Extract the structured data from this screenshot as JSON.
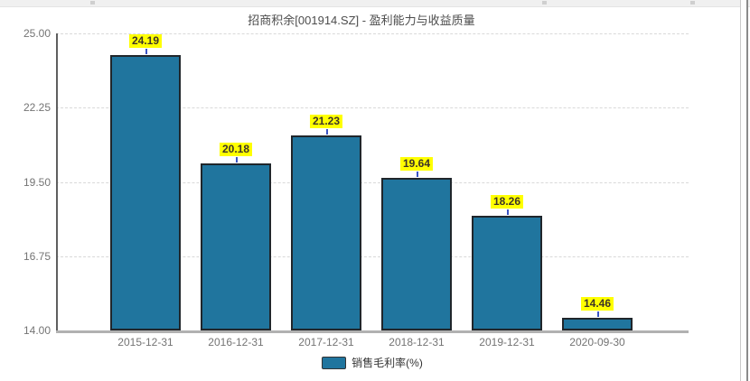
{
  "window": {
    "top_strip": true,
    "scrollbar": true
  },
  "header": {
    "title": "招商积余[001914.SZ] - 盈利能力与收益质量"
  },
  "chart_data": {
    "type": "bar",
    "title": "招商积余[001914.SZ] - 盈利能力与收益质量",
    "categories": [
      "2015-12-31",
      "2016-12-31",
      "2017-12-31",
      "2018-12-31",
      "2019-12-31",
      "2020-09-30"
    ],
    "series": [
      {
        "name": "销售毛利率(%)",
        "values": [
          24.19,
          20.18,
          21.23,
          19.64,
          18.26,
          14.46
        ]
      }
    ],
    "value_labels": [
      "24.19",
      "20.18",
      "21.23",
      "19.64",
      "18.26",
      "14.46"
    ],
    "ylim": [
      14.0,
      25.0
    ],
    "yticks": [
      "25.00",
      "22.25",
      "19.50",
      "16.75",
      "14.00"
    ],
    "grid": true,
    "grid_style": "dashed",
    "legend_position": "bottom",
    "bar_color": "#20759e",
    "bar_border_color": "#20262b",
    "label_bg_color": "#ffff00",
    "connector_color": "#3b55c4"
  },
  "legend": {
    "label": "销售毛利率(%)",
    "swatch_color": "#20759e"
  }
}
